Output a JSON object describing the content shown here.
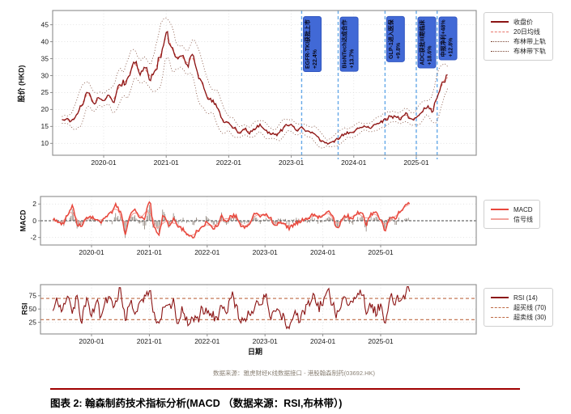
{
  "page": {
    "caption": "图表 2: 翰森制药技术指标分析(MACD （数据来源：RSI,布林带）)",
    "source_note": "数据来源：雅虎财经K线数据接口 - 港股翰森制药(03692.HK)"
  },
  "colors": {
    "grid": "#DEDEDE",
    "spine": "#8C8C8C",
    "zero_line": "#444444",
    "histogram": "#8A7F76",
    "event_line": "#66A9E8",
    "event_box": "#4169D6",
    "event_box_border": "#2F55C0",
    "caption_rule": "#A00000"
  },
  "chart_data": [
    {
      "id": "price",
      "type": "line",
      "ylabel": "股价 (HKD)",
      "yticks": [
        10,
        15,
        20,
        25,
        30,
        35,
        40,
        45
      ],
      "ylim": [
        6.5,
        49.2
      ],
      "xticks": [
        "2020-01",
        "2021-01",
        "2022-01",
        "2023-01",
        "2024-01",
        "2025-01"
      ],
      "start": "2019-05",
      "series": [
        {
          "name": "收盘价",
          "style": "solid",
          "color": "#8B1414",
          "values": [
            16.5,
            16.9,
            17.2,
            19.0,
            21.5,
            25.8,
            22.0,
            23.0,
            22.5,
            24.5,
            22.5,
            26.5,
            28.0,
            31.5,
            33.5,
            30.5,
            32.5,
            29.5,
            31.5,
            36.0,
            43.5,
            39.5,
            34.0,
            36.5,
            33.5,
            35.5,
            30.0,
            27.5,
            24.0,
            22.0,
            19.5,
            17.0,
            16.0,
            14.5,
            13.2,
            14.5,
            13.0,
            14.2,
            15.5,
            13.8,
            12.8,
            12.4,
            14.0,
            15.2,
            15.6,
            13.8,
            14.8,
            13.6,
            13.0,
            12.0,
            10.6,
            9.9,
            10.4,
            11.6,
            12.6,
            13.0,
            13.6,
            14.6,
            15.2,
            14.4,
            15.6,
            16.2,
            16.6,
            17.6,
            18.6,
            17.4,
            18.2,
            17.0,
            18.2,
            19.2,
            20.6,
            19.8,
            23.5,
            27.0,
            29.5
          ]
        },
        {
          "name": "20日均线",
          "style": "dashed",
          "color": "#E8766B",
          "derived": "moving_average_20d"
        },
        {
          "name": "布林带上轨",
          "style": "dotted",
          "color": "#7B4533",
          "derived": "bollinger_upper"
        },
        {
          "name": "布林带下轨",
          "style": "dotted",
          "color": "#7B4533",
          "derived": "bollinger_lower"
        }
      ],
      "events": [
        {
          "date": "2023-03",
          "label": "EGFR-TKI获批上市",
          "change": "+22.4%"
        },
        {
          "date": "2023-10",
          "label": "BioNTech达成合作",
          "change": "+13.7%"
        },
        {
          "date": "2024-07",
          "label": "GLP-1进入医保",
          "change": "+9.8%"
        },
        {
          "date": "2025-01",
          "label": "ADC获批III期临床",
          "change": "+18.6%"
        },
        {
          "date": "2025-05",
          "label": "中报净利+48%",
          "change": "+12.8%"
        }
      ]
    },
    {
      "id": "macd",
      "type": "line",
      "ylabel": "MACD",
      "yticks": [
        -2,
        0,
        2
      ],
      "ylim": [
        -2.9,
        2.9
      ],
      "xticks": [
        "2020-01",
        "2021-01",
        "2022-01",
        "2023-01",
        "2024-01",
        "2025-01"
      ],
      "start": "2019-05",
      "zero_line": 0,
      "series": [
        {
          "name": "MACD",
          "style": "solid",
          "color": "#E8473C",
          "values": [
            0.1,
            -0.3,
            -0.2,
            0.8,
            1.6,
            -0.3,
            -0.6,
            0.3,
            0.5,
            0.1,
            -0.4,
            0.5,
            1.0,
            1.8,
            0.9,
            -1.4,
            0.6,
            1.2,
            0.4,
            0.3,
            2.3,
            -0.8,
            -1.5,
            0.6,
            -0.4,
            0.2,
            -0.9,
            -1.0,
            -1.6,
            -2.2,
            -1.2,
            -0.7,
            -0.3,
            -0.9,
            -0.5,
            0.4,
            -0.3,
            0.7,
            0.5,
            -0.8,
            -0.6,
            -0.2,
            0.9,
            0.6,
            0.8,
            0.3,
            -0.5,
            -0.2,
            -0.6,
            -0.8,
            -0.4,
            -0.3,
            0.2,
            0.5,
            0.6,
            0.4,
            0.8,
            1.1,
            0.4,
            -0.9,
            0.2,
            0.6,
            0.3,
            0.8,
            1.0,
            -0.3,
            0.7,
            1.0,
            0.2,
            -1.1,
            0.4,
            0.3,
            1.2,
            1.6,
            2.1
          ]
        },
        {
          "name": "信号线",
          "style": "solid",
          "color": "#F2A19A",
          "derived": "signal_line"
        }
      ]
    },
    {
      "id": "rsi",
      "type": "line",
      "ylabel": "RSI",
      "xlabel": "日期",
      "yticks": [
        25,
        50,
        75
      ],
      "ylim": [
        3,
        96
      ],
      "xticks": [
        "2020-01",
        "2021-01",
        "2022-01",
        "2023-01",
        "2024-01",
        "2025-01"
      ],
      "start": "2019-05",
      "series": [
        {
          "name": "RSI (14)",
          "style": "solid",
          "color": "#8B1414",
          "values": [
            50,
            60,
            55,
            75,
            40,
            80,
            35,
            60,
            45,
            70,
            30,
            65,
            75,
            55,
            80,
            40,
            70,
            35,
            65,
            75,
            85,
            40,
            25,
            60,
            45,
            65,
            30,
            45,
            20,
            35,
            25,
            45,
            55,
            35,
            25,
            60,
            45,
            70,
            55,
            35,
            30,
            40,
            65,
            60,
            70,
            40,
            55,
            35,
            30,
            25,
            35,
            30,
            50,
            60,
            65,
            55,
            70,
            75,
            60,
            45,
            65,
            55,
            70,
            75,
            80,
            50,
            60,
            40,
            55,
            35,
            70,
            60,
            75,
            80,
            85
          ]
        }
      ],
      "thresholds": [
        {
          "name": "超买线 (70)",
          "value": 70,
          "style": "dashed",
          "color": "#BE6A45"
        },
        {
          "name": "超卖线 (30)",
          "value": 30,
          "style": "dashed",
          "color": "#BE6A45"
        }
      ]
    }
  ]
}
